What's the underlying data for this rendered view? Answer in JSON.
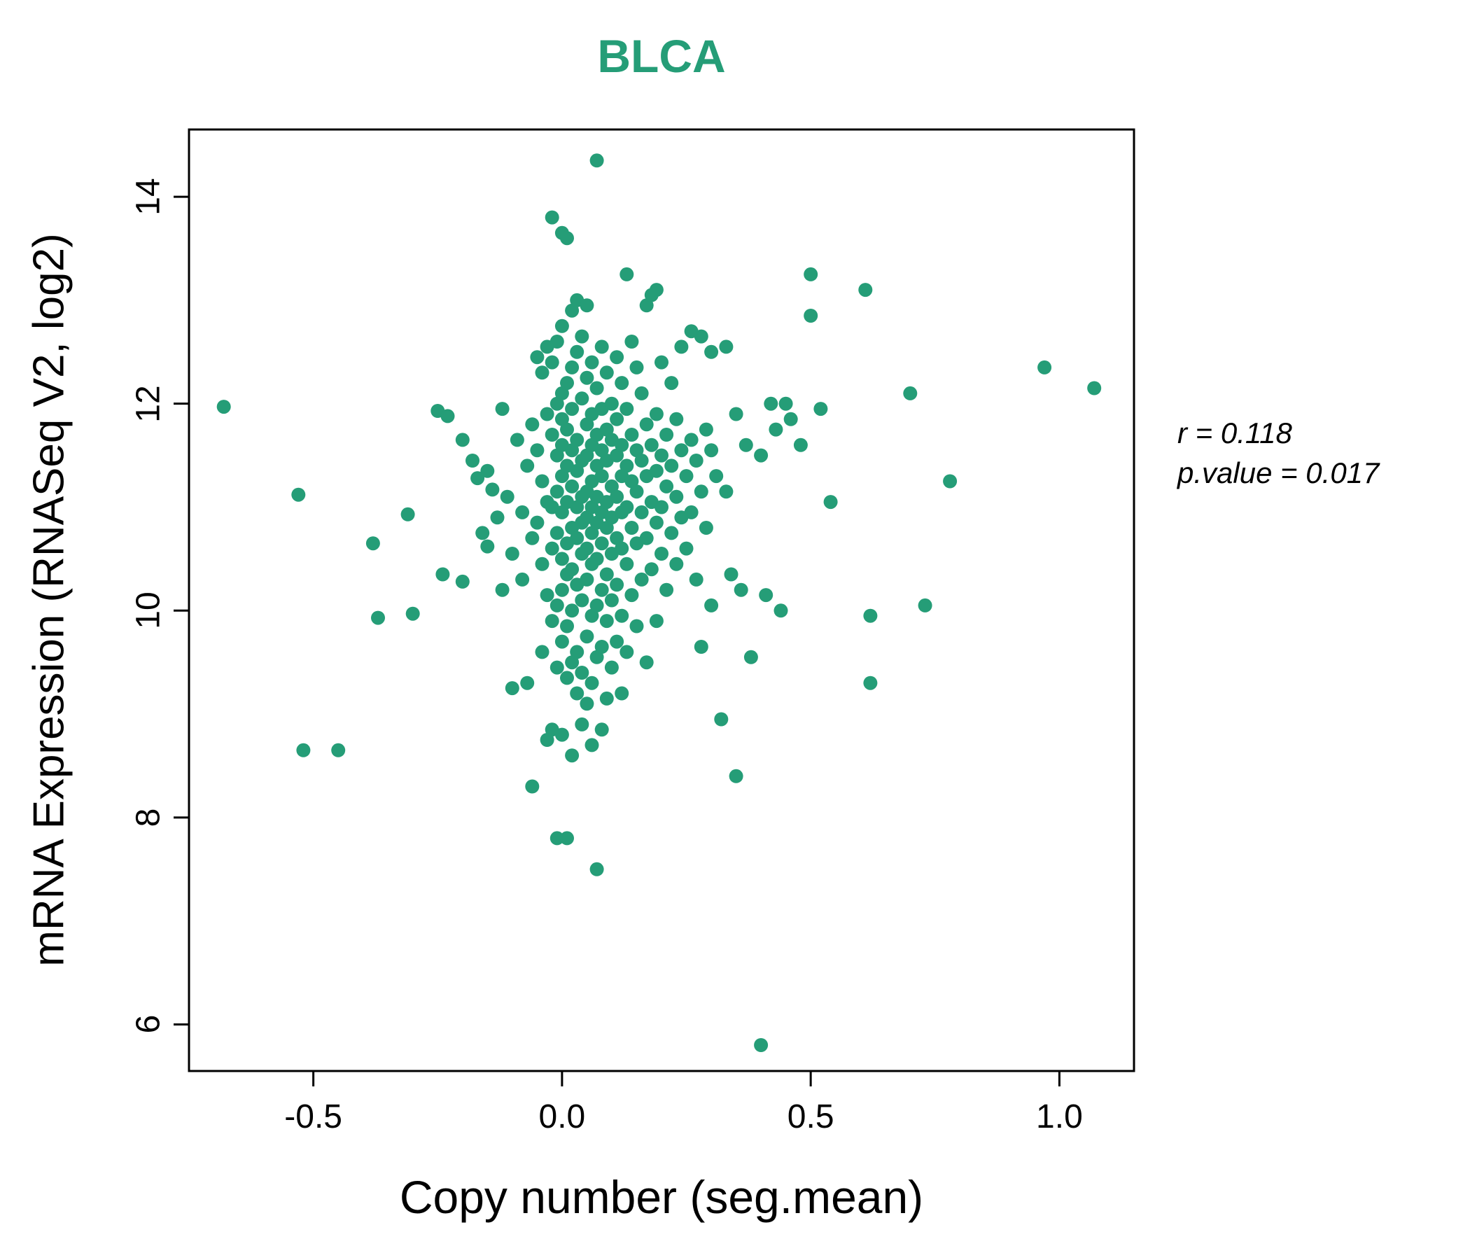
{
  "title": "BLCA",
  "annotation": {
    "line1": "r = 0.118",
    "line2": "p.value = 0.017"
  },
  "chart_data": {
    "type": "scatter",
    "title": "BLCA",
    "xlabel": "Copy number (seg.mean)",
    "ylabel": "mRNA Expression (RNASeq V2, log2)",
    "xlim": [
      -0.75,
      1.15
    ],
    "ylim": [
      5.55,
      14.65
    ],
    "xticks": [
      -0.5,
      0.0,
      0.5,
      1.0
    ],
    "xtick_labels": [
      "-0.5",
      "0.0",
      "0.5",
      "1.0"
    ],
    "yticks": [
      6,
      8,
      10,
      12,
      14
    ],
    "ytick_labels": [
      "6",
      "8",
      "10",
      "12",
      "14"
    ],
    "legend": "none",
    "grid": false,
    "point_color": "#259d77",
    "title_color": "#259d77",
    "correlation_r": 0.118,
    "p_value": 0.017,
    "points": [
      [
        -0.68,
        11.97
      ],
      [
        -0.53,
        11.12
      ],
      [
        -0.52,
        8.65
      ],
      [
        -0.45,
        8.65
      ],
      [
        -0.38,
        10.65
      ],
      [
        -0.37,
        9.93
      ],
      [
        -0.3,
        9.97
      ],
      [
        -0.31,
        10.93
      ],
      [
        -0.25,
        11.93
      ],
      [
        -0.23,
        11.88
      ],
      [
        -0.24,
        10.35
      ],
      [
        -0.2,
        11.65
      ],
      [
        -0.2,
        10.28
      ],
      [
        -0.18,
        11.45
      ],
      [
        -0.17,
        11.28
      ],
      [
        -0.16,
        10.75
      ],
      [
        -0.15,
        11.35
      ],
      [
        -0.15,
        10.62
      ],
      [
        -0.14,
        11.17
      ],
      [
        -0.13,
        10.9
      ],
      [
        -0.12,
        11.95
      ],
      [
        -0.12,
        10.2
      ],
      [
        -0.11,
        11.1
      ],
      [
        -0.1,
        10.55
      ],
      [
        -0.1,
        9.25
      ],
      [
        -0.09,
        11.65
      ],
      [
        -0.08,
        10.95
      ],
      [
        -0.08,
        10.3
      ],
      [
        -0.07,
        11.4
      ],
      [
        -0.07,
        9.3
      ],
      [
        -0.06,
        11.8
      ],
      [
        -0.06,
        10.7
      ],
      [
        -0.06,
        8.3
      ],
      [
        -0.05,
        12.45
      ],
      [
        -0.05,
        11.55
      ],
      [
        -0.05,
        10.85
      ],
      [
        -0.04,
        12.3
      ],
      [
        -0.04,
        11.25
      ],
      [
        -0.04,
        10.45
      ],
      [
        -0.04,
        9.6
      ],
      [
        -0.03,
        12.55
      ],
      [
        -0.03,
        11.9
      ],
      [
        -0.03,
        11.05
      ],
      [
        -0.03,
        10.15
      ],
      [
        -0.03,
        8.75
      ],
      [
        -0.02,
        13.8
      ],
      [
        -0.02,
        12.4
      ],
      [
        -0.02,
        11.7
      ],
      [
        -0.02,
        11.0
      ],
      [
        -0.02,
        10.6
      ],
      [
        -0.02,
        9.9
      ],
      [
        -0.02,
        8.85
      ],
      [
        -0.01,
        12.6
      ],
      [
        -0.01,
        12.0
      ],
      [
        -0.01,
        11.5
      ],
      [
        -0.01,
        11.15
      ],
      [
        -0.01,
        10.75
      ],
      [
        -0.01,
        10.05
      ],
      [
        -0.01,
        9.45
      ],
      [
        -0.01,
        7.8
      ],
      [
        0.0,
        13.65
      ],
      [
        0.0,
        12.75
      ],
      [
        0.0,
        12.1
      ],
      [
        0.0,
        11.85
      ],
      [
        0.0,
        11.6
      ],
      [
        0.0,
        11.3
      ],
      [
        0.0,
        10.95
      ],
      [
        0.0,
        10.5
      ],
      [
        0.0,
        10.2
      ],
      [
        0.0,
        9.7
      ],
      [
        0.0,
        8.8
      ],
      [
        0.01,
        13.6
      ],
      [
        0.01,
        12.2
      ],
      [
        0.01,
        11.75
      ],
      [
        0.01,
        11.4
      ],
      [
        0.01,
        11.05
      ],
      [
        0.01,
        10.65
      ],
      [
        0.01,
        10.35
      ],
      [
        0.01,
        9.85
      ],
      [
        0.01,
        9.35
      ],
      [
        0.01,
        7.8
      ],
      [
        0.02,
        12.9
      ],
      [
        0.02,
        12.35
      ],
      [
        0.02,
        11.95
      ],
      [
        0.02,
        11.55
      ],
      [
        0.02,
        11.2
      ],
      [
        0.02,
        10.8
      ],
      [
        0.02,
        10.4
      ],
      [
        0.02,
        10.0
      ],
      [
        0.02,
        9.5
      ],
      [
        0.02,
        8.6
      ],
      [
        0.03,
        13.0
      ],
      [
        0.03,
        12.5
      ],
      [
        0.03,
        11.65
      ],
      [
        0.03,
        11.35
      ],
      [
        0.03,
        11.0
      ],
      [
        0.03,
        10.7
      ],
      [
        0.03,
        10.25
      ],
      [
        0.03,
        9.6
      ],
      [
        0.03,
        9.2
      ],
      [
        0.04,
        12.65
      ],
      [
        0.04,
        12.05
      ],
      [
        0.04,
        11.45
      ],
      [
        0.04,
        11.1
      ],
      [
        0.04,
        10.85
      ],
      [
        0.04,
        10.55
      ],
      [
        0.04,
        10.1
      ],
      [
        0.04,
        9.4
      ],
      [
        0.04,
        8.9
      ],
      [
        0.05,
        12.95
      ],
      [
        0.05,
        12.25
      ],
      [
        0.05,
        11.8
      ],
      [
        0.05,
        11.5
      ],
      [
        0.05,
        11.15
      ],
      [
        0.05,
        10.9
      ],
      [
        0.05,
        10.6
      ],
      [
        0.05,
        10.3
      ],
      [
        0.05,
        9.75
      ],
      [
        0.05,
        9.1
      ],
      [
        0.06,
        12.4
      ],
      [
        0.06,
        11.9
      ],
      [
        0.06,
        11.6
      ],
      [
        0.06,
        11.25
      ],
      [
        0.06,
        11.0
      ],
      [
        0.06,
        10.75
      ],
      [
        0.06,
        10.45
      ],
      [
        0.06,
        9.95
      ],
      [
        0.06,
        9.3
      ],
      [
        0.06,
        8.7
      ],
      [
        0.07,
        14.35
      ],
      [
        0.07,
        12.15
      ],
      [
        0.07,
        11.7
      ],
      [
        0.07,
        11.4
      ],
      [
        0.07,
        11.1
      ],
      [
        0.07,
        10.85
      ],
      [
        0.07,
        10.5
      ],
      [
        0.07,
        10.05
      ],
      [
        0.07,
        9.55
      ],
      [
        0.07,
        7.5
      ],
      [
        0.08,
        12.55
      ],
      [
        0.08,
        11.95
      ],
      [
        0.08,
        11.55
      ],
      [
        0.08,
        11.3
      ],
      [
        0.08,
        10.95
      ],
      [
        0.08,
        10.65
      ],
      [
        0.08,
        10.2
      ],
      [
        0.08,
        9.65
      ],
      [
        0.08,
        8.85
      ],
      [
        0.09,
        12.3
      ],
      [
        0.09,
        11.75
      ],
      [
        0.09,
        11.45
      ],
      [
        0.09,
        11.05
      ],
      [
        0.09,
        10.8
      ],
      [
        0.09,
        10.35
      ],
      [
        0.09,
        9.9
      ],
      [
        0.09,
        9.15
      ],
      [
        0.1,
        12.0
      ],
      [
        0.1,
        11.65
      ],
      [
        0.1,
        11.2
      ],
      [
        0.1,
        10.9
      ],
      [
        0.1,
        10.55
      ],
      [
        0.1,
        10.1
      ],
      [
        0.1,
        9.45
      ],
      [
        0.11,
        12.45
      ],
      [
        0.11,
        11.85
      ],
      [
        0.11,
        11.5
      ],
      [
        0.11,
        11.1
      ],
      [
        0.11,
        10.7
      ],
      [
        0.11,
        10.25
      ],
      [
        0.11,
        9.7
      ],
      [
        0.12,
        12.2
      ],
      [
        0.12,
        11.6
      ],
      [
        0.12,
        11.3
      ],
      [
        0.12,
        10.95
      ],
      [
        0.12,
        10.6
      ],
      [
        0.12,
        9.95
      ],
      [
        0.12,
        9.2
      ],
      [
        0.13,
        13.25
      ],
      [
        0.13,
        11.95
      ],
      [
        0.13,
        11.4
      ],
      [
        0.13,
        11.0
      ],
      [
        0.13,
        10.45
      ],
      [
        0.13,
        9.6
      ],
      [
        0.14,
        12.6
      ],
      [
        0.14,
        11.7
      ],
      [
        0.14,
        11.25
      ],
      [
        0.14,
        10.8
      ],
      [
        0.14,
        10.15
      ],
      [
        0.15,
        12.35
      ],
      [
        0.15,
        11.55
      ],
      [
        0.15,
        11.15
      ],
      [
        0.15,
        10.65
      ],
      [
        0.15,
        9.85
      ],
      [
        0.16,
        12.1
      ],
      [
        0.16,
        11.45
      ],
      [
        0.16,
        10.95
      ],
      [
        0.16,
        10.3
      ],
      [
        0.17,
        12.95
      ],
      [
        0.17,
        11.8
      ],
      [
        0.17,
        11.3
      ],
      [
        0.17,
        10.7
      ],
      [
        0.17,
        9.5
      ],
      [
        0.18,
        13.05
      ],
      [
        0.18,
        11.6
      ],
      [
        0.18,
        11.05
      ],
      [
        0.18,
        10.4
      ],
      [
        0.19,
        13.1
      ],
      [
        0.19,
        11.9
      ],
      [
        0.19,
        11.35
      ],
      [
        0.19,
        10.85
      ],
      [
        0.19,
        9.9
      ],
      [
        0.2,
        12.4
      ],
      [
        0.2,
        11.5
      ],
      [
        0.2,
        11.0
      ],
      [
        0.2,
        10.55
      ],
      [
        0.21,
        11.7
      ],
      [
        0.21,
        11.2
      ],
      [
        0.21,
        10.2
      ],
      [
        0.22,
        12.2
      ],
      [
        0.22,
        11.4
      ],
      [
        0.22,
        10.75
      ],
      [
        0.23,
        11.85
      ],
      [
        0.23,
        11.1
      ],
      [
        0.23,
        10.45
      ],
      [
        0.24,
        12.55
      ],
      [
        0.24,
        11.55
      ],
      [
        0.24,
        10.9
      ],
      [
        0.25,
        11.3
      ],
      [
        0.25,
        10.6
      ],
      [
        0.26,
        12.7
      ],
      [
        0.26,
        11.65
      ],
      [
        0.26,
        10.95
      ],
      [
        0.27,
        11.45
      ],
      [
        0.27,
        10.3
      ],
      [
        0.28,
        12.65
      ],
      [
        0.28,
        11.15
      ],
      [
        0.28,
        9.65
      ],
      [
        0.29,
        11.75
      ],
      [
        0.29,
        10.8
      ],
      [
        0.3,
        12.5
      ],
      [
        0.3,
        11.55
      ],
      [
        0.3,
        10.05
      ],
      [
        0.31,
        11.3
      ],
      [
        0.32,
        8.95
      ],
      [
        0.33,
        12.55
      ],
      [
        0.33,
        11.15
      ],
      [
        0.34,
        10.35
      ],
      [
        0.35,
        8.4
      ],
      [
        0.35,
        11.9
      ],
      [
        0.36,
        10.2
      ],
      [
        0.37,
        11.6
      ],
      [
        0.38,
        9.55
      ],
      [
        0.4,
        5.8
      ],
      [
        0.4,
        11.5
      ],
      [
        0.41,
        10.15
      ],
      [
        0.42,
        12.0
      ],
      [
        0.43,
        11.75
      ],
      [
        0.44,
        10.0
      ],
      [
        0.45,
        12.0
      ],
      [
        0.46,
        11.85
      ],
      [
        0.48,
        11.6
      ],
      [
        0.5,
        13.25
      ],
      [
        0.5,
        12.85
      ],
      [
        0.52,
        11.95
      ],
      [
        0.54,
        11.05
      ],
      [
        0.61,
        13.1
      ],
      [
        0.62,
        9.3
      ],
      [
        0.62,
        9.95
      ],
      [
        0.7,
        12.1
      ],
      [
        0.73,
        10.05
      ],
      [
        0.78,
        11.25
      ],
      [
        0.97,
        12.35
      ],
      [
        1.07,
        12.15
      ]
    ]
  }
}
